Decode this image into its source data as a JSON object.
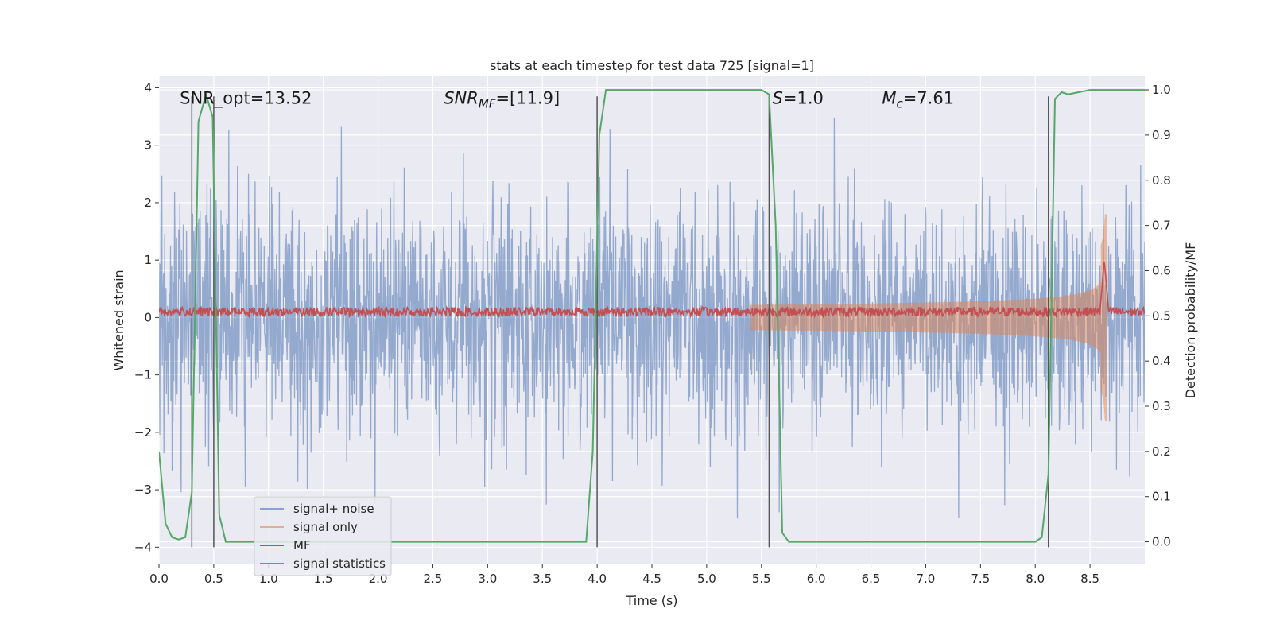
{
  "chart_data": {
    "type": "line",
    "title": "stats at each timestep for test data 725 [signal=1]",
    "xlabel": "Time (s)",
    "ylabel_left": "Whitened strain",
    "ylabel_right": "Detection probability/MF",
    "xlim": [
      0,
      9.0
    ],
    "ylim_left": [
      -4.3,
      4.2
    ],
    "ylim_right": [
      -0.05,
      1.03
    ],
    "x_ticks": [
      0.0,
      0.5,
      1.0,
      1.5,
      2.0,
      2.5,
      3.0,
      3.5,
      4.0,
      4.5,
      5.0,
      5.5,
      6.0,
      6.5,
      7.0,
      7.5,
      8.0,
      8.5
    ],
    "x_tick_labels": [
      "0.0",
      "0.5",
      "1.0",
      "1.5",
      "2.0",
      "2.5",
      "3.0",
      "3.5",
      "4.0",
      "4.5",
      "5.0",
      "5.5",
      "6.0",
      "6.5",
      "7.0",
      "7.5",
      "8.0",
      "8.5"
    ],
    "y_ticks_left": [
      -4,
      -3,
      -2,
      -1,
      0,
      1,
      2,
      3,
      4
    ],
    "y_tick_labels_left": [
      "−4",
      "−3",
      "−2",
      "−1",
      "0",
      "1",
      "2",
      "3",
      "4"
    ],
    "y_ticks_right": [
      0.0,
      0.1,
      0.2,
      0.3,
      0.4,
      0.5,
      0.6,
      0.7,
      0.8,
      0.9,
      1.0
    ],
    "y_tick_labels_right": [
      "0.0",
      "0.1",
      "0.2",
      "0.3",
      "0.4",
      "0.5",
      "0.6",
      "0.7",
      "0.8",
      "0.9",
      "1.0"
    ],
    "grid": true,
    "legend_position": "lower-left",
    "annotations": [
      {
        "id": "snr-opt",
        "text": "SNR_opt=13.52",
        "x": 0.19,
        "y": 3.82
      },
      {
        "id": "snr-mf",
        "text": "SNR",
        "sub": "MF",
        "suffix": "=[11.9]",
        "x": 2.6,
        "y": 3.82
      },
      {
        "id": "s-value",
        "text": "S",
        "suffix": "=1.0",
        "x": 5.6,
        "y": 3.82
      },
      {
        "id": "mc-value",
        "text": "M",
        "sub": "c",
        "suffix": "=7.61",
        "x": 6.6,
        "y": 3.82
      }
    ],
    "vertical_lines": [
      0.3,
      0.5,
      4.0,
      5.57,
      8.12
    ],
    "series": [
      {
        "name": "signal+ noise",
        "color": "#4c72b0",
        "alpha": 0.5,
        "axis": "left",
        "style": "noise",
        "amplitude_typical": 1.0,
        "amplitude_max": 3.5
      },
      {
        "name": "signal only",
        "color": "#dd8452",
        "alpha": 0.5,
        "axis": "left",
        "style": "chirp",
        "chirp_start": 5.4,
        "chirp_end": 8.65,
        "peak_amplitude": 1.8
      },
      {
        "name": "MF",
        "color": "#c44e52",
        "axis": "left",
        "style": "mf",
        "level": 0.1,
        "jitter": 0.08,
        "peak_x": 8.63,
        "peak_value": 1.0
      },
      {
        "name": "signal statistics",
        "color": "#55a868",
        "axis": "right",
        "style": "line",
        "x": [
          0.0,
          0.06,
          0.12,
          0.18,
          0.24,
          0.3,
          0.36,
          0.43,
          0.49,
          0.55,
          0.61,
          0.67,
          1.0,
          2.0,
          3.0,
          3.9,
          3.96,
          4.02,
          4.08,
          4.5,
          5.0,
          5.5,
          5.57,
          5.63,
          5.69,
          5.75,
          6.0,
          7.0,
          8.0,
          8.06,
          8.12,
          8.18,
          8.24,
          8.3,
          8.4,
          8.5,
          8.6,
          9.0
        ],
        "y": [
          0.2,
          0.04,
          0.01,
          0.005,
          0.01,
          0.11,
          0.93,
          0.99,
          0.94,
          0.06,
          0.0,
          0.0,
          0.0,
          0.0,
          0.0,
          0.0,
          0.2,
          0.9,
          1.0,
          1.0,
          1.0,
          1.0,
          0.99,
          0.7,
          0.02,
          0.0,
          0.0,
          0.0,
          0.0,
          0.01,
          0.15,
          0.98,
          0.995,
          0.99,
          0.995,
          1.0,
          1.0,
          1.0
        ]
      }
    ]
  }
}
